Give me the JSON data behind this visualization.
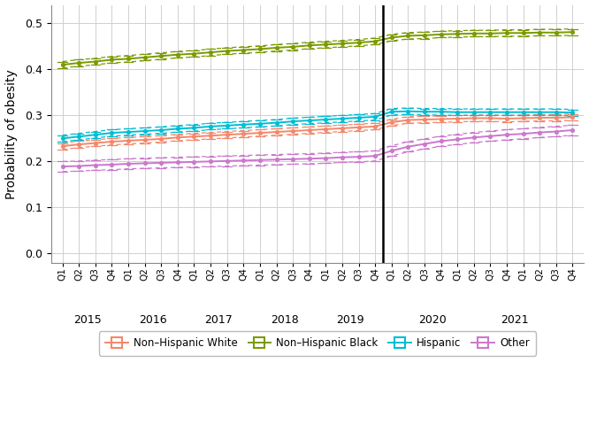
{
  "title": "",
  "ylabel": "Probability of obesity",
  "ylim": [
    -0.02,
    0.54
  ],
  "yticks": [
    0.0,
    0.1,
    0.2,
    0.3,
    0.4,
    0.5
  ],
  "pandemic_line_idx": 20,
  "quarters": [
    "Q1",
    "Q2",
    "Q3",
    "Q4",
    "Q1",
    "Q2",
    "Q3",
    "Q4",
    "Q1",
    "Q2",
    "Q3",
    "Q4",
    "Q1",
    "Q2",
    "Q3",
    "Q4",
    "Q1",
    "Q2",
    "Q3",
    "Q4",
    "Q1",
    "Q2",
    "Q3",
    "Q4",
    "Q1",
    "Q2",
    "Q3",
    "Q4",
    "Q1",
    "Q2",
    "Q3",
    "Q4"
  ],
  "year_labels": [
    "2015",
    "2016",
    "2017",
    "2018",
    "2019",
    "2020",
    "2021"
  ],
  "year_positions": [
    1.5,
    5.5,
    9.5,
    13.5,
    17.5,
    22.5,
    27.5
  ],
  "series": {
    "NH_White": {
      "label": "Non–Hispanic White",
      "color": "#F4876A",
      "values": [
        0.233,
        0.237,
        0.24,
        0.243,
        0.245,
        0.247,
        0.249,
        0.252,
        0.254,
        0.256,
        0.258,
        0.26,
        0.262,
        0.264,
        0.266,
        0.268,
        0.27,
        0.272,
        0.274,
        0.276,
        0.285,
        0.29,
        0.291,
        0.292,
        0.293,
        0.294,
        0.294,
        0.293,
        0.294,
        0.295,
        0.295,
        0.296
      ],
      "ci_lower": [
        0.226,
        0.23,
        0.233,
        0.236,
        0.238,
        0.24,
        0.242,
        0.245,
        0.247,
        0.249,
        0.251,
        0.253,
        0.255,
        0.257,
        0.259,
        0.261,
        0.263,
        0.265,
        0.267,
        0.269,
        0.278,
        0.283,
        0.284,
        0.285,
        0.286,
        0.287,
        0.287,
        0.286,
        0.287,
        0.288,
        0.288,
        0.289
      ],
      "ci_upper": [
        0.24,
        0.244,
        0.247,
        0.25,
        0.252,
        0.254,
        0.256,
        0.259,
        0.261,
        0.263,
        0.265,
        0.267,
        0.269,
        0.271,
        0.273,
        0.275,
        0.277,
        0.279,
        0.281,
        0.283,
        0.292,
        0.297,
        0.298,
        0.299,
        0.3,
        0.301,
        0.301,
        0.3,
        0.301,
        0.302,
        0.302,
        0.303
      ]
    },
    "NH_Black": {
      "label": "Non–Hispanic Black",
      "color": "#7A9A01",
      "values": [
        0.41,
        0.414,
        0.417,
        0.421,
        0.423,
        0.426,
        0.429,
        0.432,
        0.434,
        0.437,
        0.44,
        0.442,
        0.444,
        0.447,
        0.449,
        0.452,
        0.454,
        0.456,
        0.458,
        0.461,
        0.469,
        0.473,
        0.474,
        0.476,
        0.477,
        0.478,
        0.478,
        0.479,
        0.479,
        0.48,
        0.48,
        0.481
      ],
      "ci_lower": [
        0.403,
        0.407,
        0.41,
        0.414,
        0.416,
        0.419,
        0.422,
        0.425,
        0.427,
        0.43,
        0.433,
        0.435,
        0.437,
        0.44,
        0.442,
        0.445,
        0.447,
        0.449,
        0.451,
        0.454,
        0.462,
        0.466,
        0.467,
        0.469,
        0.47,
        0.471,
        0.471,
        0.472,
        0.472,
        0.473,
        0.473,
        0.474
      ],
      "ci_upper": [
        0.417,
        0.421,
        0.424,
        0.428,
        0.43,
        0.433,
        0.436,
        0.439,
        0.441,
        0.444,
        0.447,
        0.449,
        0.451,
        0.454,
        0.456,
        0.459,
        0.461,
        0.463,
        0.465,
        0.468,
        0.476,
        0.48,
        0.481,
        0.483,
        0.484,
        0.485,
        0.485,
        0.486,
        0.486,
        0.487,
        0.487,
        0.488
      ]
    },
    "Hispanic": {
      "label": "Hispanic",
      "color": "#00BCD4",
      "values": [
        0.25,
        0.254,
        0.258,
        0.262,
        0.264,
        0.266,
        0.268,
        0.271,
        0.273,
        0.276,
        0.278,
        0.28,
        0.282,
        0.284,
        0.287,
        0.289,
        0.291,
        0.293,
        0.295,
        0.297,
        0.308,
        0.309,
        0.308,
        0.308,
        0.307,
        0.307,
        0.307,
        0.307,
        0.307,
        0.307,
        0.307,
        0.306
      ],
      "ci_lower": [
        0.243,
        0.247,
        0.251,
        0.255,
        0.257,
        0.259,
        0.261,
        0.264,
        0.266,
        0.269,
        0.271,
        0.273,
        0.275,
        0.277,
        0.28,
        0.282,
        0.284,
        0.286,
        0.288,
        0.29,
        0.301,
        0.302,
        0.301,
        0.301,
        0.3,
        0.3,
        0.3,
        0.3,
        0.3,
        0.3,
        0.3,
        0.299
      ],
      "ci_upper": [
        0.257,
        0.261,
        0.265,
        0.269,
        0.271,
        0.273,
        0.275,
        0.278,
        0.28,
        0.283,
        0.285,
        0.287,
        0.289,
        0.291,
        0.294,
        0.296,
        0.298,
        0.3,
        0.302,
        0.304,
        0.315,
        0.316,
        0.315,
        0.315,
        0.314,
        0.314,
        0.314,
        0.314,
        0.314,
        0.314,
        0.314,
        0.313
      ]
    },
    "Other": {
      "label": "Other",
      "color": "#CC77CC",
      "values": [
        0.189,
        0.19,
        0.192,
        0.193,
        0.195,
        0.196,
        0.197,
        0.198,
        0.199,
        0.2,
        0.201,
        0.202,
        0.203,
        0.204,
        0.205,
        0.206,
        0.207,
        0.209,
        0.21,
        0.212,
        0.223,
        0.232,
        0.238,
        0.244,
        0.248,
        0.252,
        0.255,
        0.258,
        0.26,
        0.263,
        0.265,
        0.268
      ],
      "ci_lower": [
        0.178,
        0.179,
        0.181,
        0.182,
        0.184,
        0.185,
        0.186,
        0.187,
        0.188,
        0.189,
        0.19,
        0.191,
        0.192,
        0.193,
        0.194,
        0.195,
        0.196,
        0.198,
        0.199,
        0.201,
        0.212,
        0.221,
        0.227,
        0.233,
        0.237,
        0.241,
        0.244,
        0.247,
        0.249,
        0.252,
        0.254,
        0.257
      ],
      "ci_upper": [
        0.2,
        0.201,
        0.203,
        0.204,
        0.206,
        0.207,
        0.208,
        0.209,
        0.21,
        0.211,
        0.212,
        0.213,
        0.214,
        0.215,
        0.216,
        0.217,
        0.218,
        0.22,
        0.221,
        0.223,
        0.234,
        0.243,
        0.249,
        0.255,
        0.259,
        0.263,
        0.266,
        0.269,
        0.271,
        0.274,
        0.276,
        0.279
      ]
    }
  },
  "plot_bg": "#ffffff",
  "fig_bg": "#ffffff",
  "grid_color": "#d0d0d0",
  "spine_color": "#888888"
}
